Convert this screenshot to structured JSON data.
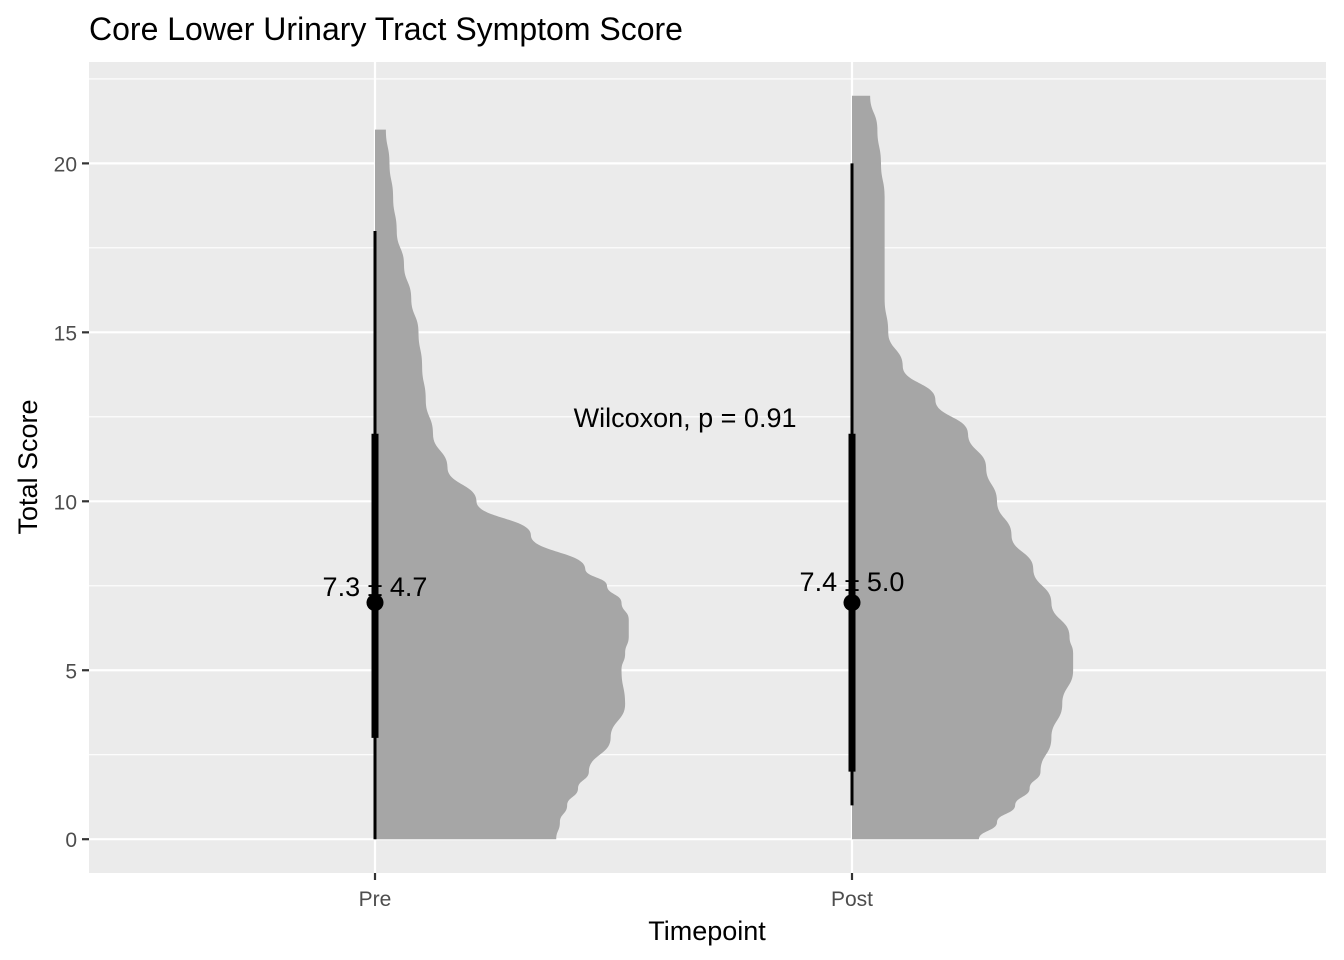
{
  "chart_data": {
    "type": "violin",
    "title": "Core Lower Urinary Tract Symptom Score",
    "xlabel": "Timepoint",
    "ylabel": "Total Score",
    "categories": [
      "Pre",
      "Post"
    ],
    "ylim": [
      -1,
      23
    ],
    "yticks": [
      0,
      5,
      10,
      15,
      20
    ],
    "grid": true,
    "legend": "none",
    "colors": {
      "panel": "#EBEBEB",
      "grid": "#FFFFFF",
      "violin": "#A6A6A6",
      "summary": "#000000",
      "text": "#000000",
      "tick_text": "#4D4D4D",
      "tick": "#333333"
    },
    "groups": [
      {
        "label": "Pre",
        "min": 0,
        "q1": 3,
        "median": 7,
        "q3": 12,
        "max": 18,
        "data_max": 21,
        "summary_label": "7.3 ± 4.7",
        "density": [
          [
            0,
            0.5
          ],
          [
            0.5,
            0.51
          ],
          [
            1,
            0.53
          ],
          [
            1.5,
            0.56
          ],
          [
            2,
            0.59
          ],
          [
            3,
            0.65
          ],
          [
            4,
            0.69
          ],
          [
            5,
            0.68
          ],
          [
            5.5,
            0.69
          ],
          [
            6,
            0.7
          ],
          [
            6.5,
            0.7
          ],
          [
            7,
            0.68
          ],
          [
            7.5,
            0.64
          ],
          [
            8,
            0.58
          ],
          [
            9,
            0.43
          ],
          [
            10,
            0.28
          ],
          [
            11,
            0.2
          ],
          [
            12,
            0.16
          ],
          [
            13,
            0.14
          ],
          [
            14,
            0.13
          ],
          [
            15,
            0.12
          ],
          [
            16,
            0.1
          ],
          [
            17,
            0.08
          ],
          [
            18,
            0.06
          ],
          [
            19,
            0.05
          ],
          [
            20,
            0.04
          ],
          [
            21,
            0.03
          ]
        ]
      },
      {
        "label": "Post",
        "min": 1,
        "q1": 2,
        "median": 7,
        "q3": 12,
        "max": 20,
        "data_max": 22,
        "summary_label": "7.4 ± 5.0",
        "density": [
          [
            0,
            0.35
          ],
          [
            0.5,
            0.4
          ],
          [
            1,
            0.45
          ],
          [
            1.5,
            0.49
          ],
          [
            2,
            0.52
          ],
          [
            3,
            0.55
          ],
          [
            4,
            0.58
          ],
          [
            5,
            0.61
          ],
          [
            5.5,
            0.61
          ],
          [
            6,
            0.6
          ],
          [
            7,
            0.55
          ],
          [
            8,
            0.5
          ],
          [
            9,
            0.44
          ],
          [
            10,
            0.4
          ],
          [
            11,
            0.37
          ],
          [
            12,
            0.32
          ],
          [
            13,
            0.23
          ],
          [
            14,
            0.14
          ],
          [
            15,
            0.1
          ],
          [
            16,
            0.09
          ],
          [
            17,
            0.09
          ],
          [
            18,
            0.09
          ],
          [
            19,
            0.09
          ],
          [
            20,
            0.08
          ],
          [
            21,
            0.07
          ],
          [
            22,
            0.05
          ]
        ]
      }
    ],
    "annotation": {
      "text": "Wilcoxon, p = 0.91",
      "x": 1.65,
      "y": 12.2
    }
  }
}
